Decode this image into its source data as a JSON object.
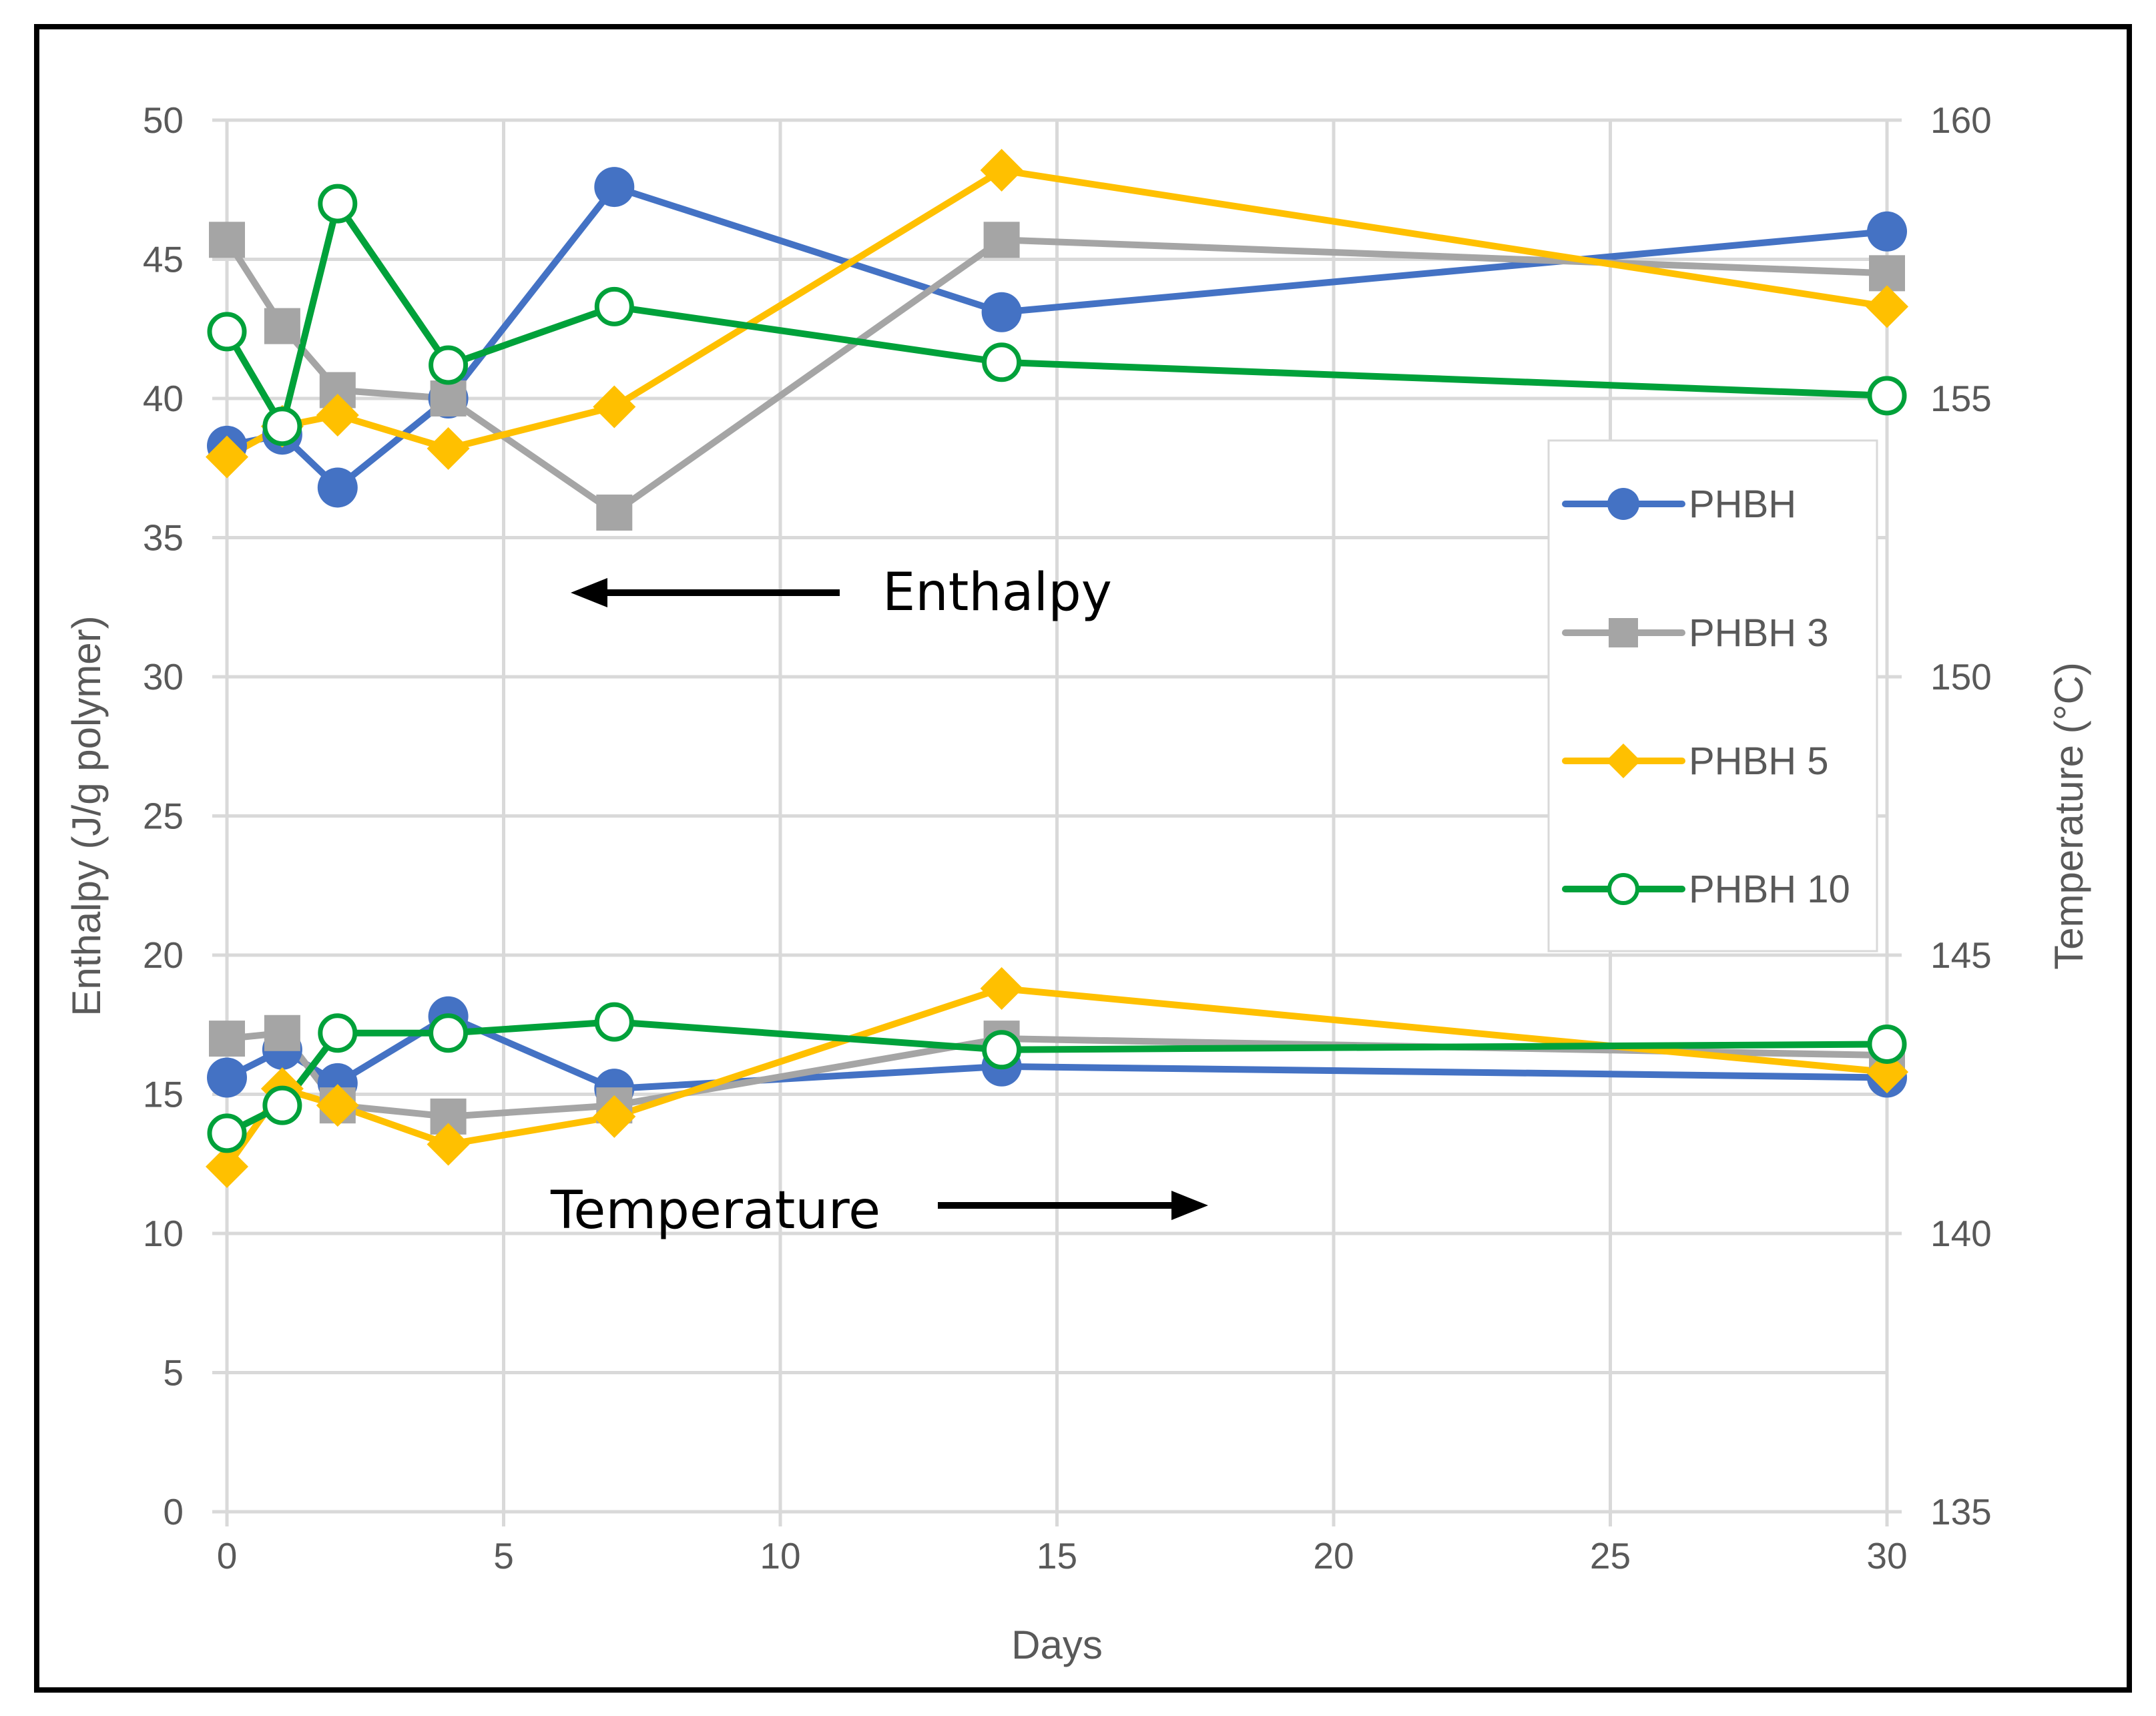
{
  "chart_data": {
    "type": "line",
    "x_values": [
      0,
      1,
      2,
      4,
      7,
      14,
      30
    ],
    "xlabel": "Days",
    "ylabel_left": "Enthalpy (J/g polymer)",
    "ylabel_right": "Temperature (°C)",
    "xlim": [
      0,
      30
    ],
    "ylim_left": [
      0,
      50
    ],
    "ylim_right": [
      135,
      160
    ],
    "xticks": [
      "0",
      "5",
      "10",
      "15",
      "20",
      "25",
      "30"
    ],
    "yticks_left": [
      "0",
      "5",
      "10",
      "15",
      "20",
      "25",
      "30",
      "35",
      "40",
      "45",
      "50"
    ],
    "yticks_right": [
      "135",
      "140",
      "145",
      "150",
      "155",
      "160"
    ],
    "grid": true,
    "legend_position": "right",
    "annotations": [
      {
        "text": "Enthalpy",
        "arrow": "left"
      },
      {
        "text": "Temperature",
        "arrow": "right"
      }
    ],
    "series": [
      {
        "name": "PHBH",
        "color": "#4472c4",
        "marker": "circle",
        "enthalpy": [
          38.3,
          38.7,
          36.8,
          40.0,
          47.6,
          43.1,
          46.0
        ],
        "temperature": [
          142.8,
          143.3,
          142.7,
          143.9,
          142.6,
          143.0,
          142.8
        ]
      },
      {
        "name": "PHBH 3",
        "color": "#a5a5a5",
        "marker": "square",
        "enthalpy": [
          45.7,
          42.6,
          40.3,
          40.0,
          35.9,
          45.7,
          44.5
        ],
        "temperature": [
          143.5,
          143.6,
          142.3,
          142.1,
          142.3,
          143.5,
          143.2
        ]
      },
      {
        "name": "PHBH 5",
        "color": "#ffc000",
        "marker": "diamond",
        "enthalpy": [
          37.9,
          39.0,
          39.4,
          38.2,
          39.7,
          48.2,
          43.3
        ],
        "temperature": [
          141.2,
          142.6,
          142.3,
          141.6,
          142.1,
          144.4,
          142.9
        ]
      },
      {
        "name": "PHBH 10",
        "color": "#00a13a",
        "marker": "open-circle",
        "enthalpy": [
          42.4,
          39.0,
          47.0,
          41.2,
          43.3,
          41.3,
          40.1
        ],
        "temperature": [
          141.8,
          142.3,
          143.6,
          143.6,
          143.8,
          143.3,
          143.4
        ]
      }
    ]
  }
}
